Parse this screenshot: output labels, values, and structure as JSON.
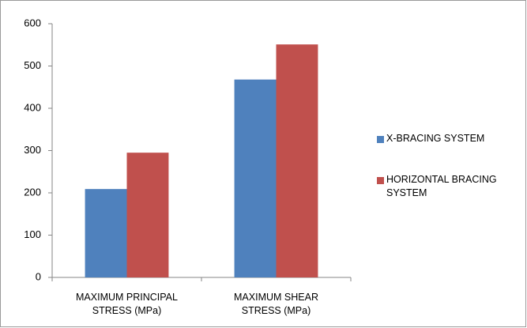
{
  "chart_data": {
    "type": "bar",
    "categories": [
      "MAXIMUM PRINCIPAL STRESS (MPa)",
      "MAXIMUM SHEAR STRESS (MPa)"
    ],
    "series": [
      {
        "name": "X-BRACING SYSTEM",
        "color": "#4f81bd",
        "values": [
          209,
          468
        ]
      },
      {
        "name": "HORIZONTAL BRACING SYSTEM",
        "color": "#c0504d",
        "values": [
          295,
          551
        ]
      }
    ],
    "ylim": [
      0,
      600
    ],
    "yticks": [
      0,
      100,
      200,
      300,
      400,
      500,
      600
    ],
    "grid": false,
    "legend": "right"
  }
}
